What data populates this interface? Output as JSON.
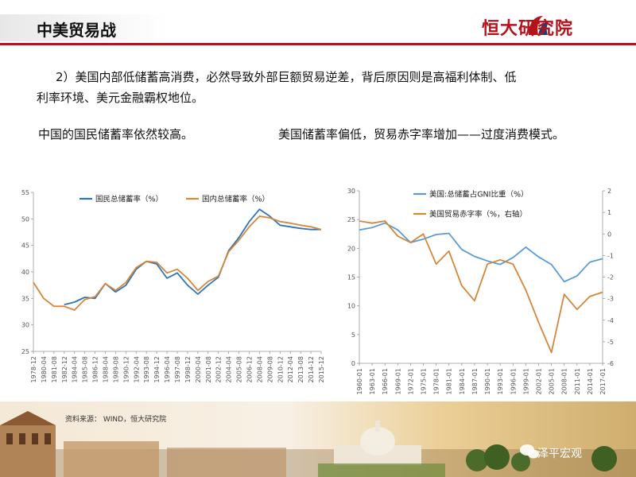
{
  "header": {
    "title": "中美贸易战",
    "logo_text": "恒大研究院"
  },
  "paragraph": {
    "line1": "2）美国内部低储蓄高消费，必然导致外部巨额贸易逆差，背后原因则是高福利体制、低",
    "line2": "利率环境、美元金融霸权地位。"
  },
  "subtitles": {
    "left": "中国的国民储蓄率依然较高。",
    "right": "美国储蓄率偏低，贸易赤字率增加——过度消费模式。"
  },
  "source": "资料来源： WIND，恒大研究院",
  "wechat": "泽平宏观",
  "colors": {
    "blue": "#2e75b6",
    "orange": "#d4873a",
    "brand_red": "#b5121b"
  },
  "icons": {
    "logo": "evergrande-logo-icon",
    "wechat": "wechat-icon"
  },
  "chart_data": [
    {
      "type": "line",
      "x": [
        "1978-12",
        "1980-04",
        "1981-08",
        "1982-12",
        "1984-04",
        "1985-08",
        "1986-12",
        "1988-04",
        "1989-08",
        "1990-12",
        "1992-04",
        "1993-08",
        "1994-12",
        "1996-04",
        "1997-08",
        "1998-12",
        "2000-04",
        "2001-08",
        "2002-12",
        "2004-04",
        "2005-08",
        "2006-12",
        "2008-04",
        "2009-08",
        "2010-12",
        "2012-04",
        "2013-08",
        "2014-12",
        "2015-12"
      ],
      "ylim": [
        25,
        55
      ],
      "yticks": [
        25,
        30,
        35,
        40,
        45,
        50,
        55
      ],
      "legend_position": "top",
      "series": [
        {
          "name": "国民总储蓄率（%）",
          "color": "#2e75b6",
          "values": [
            null,
            null,
            null,
            33.8,
            34.3,
            35.2,
            35.0,
            37.8,
            36.2,
            37.5,
            40.5,
            42.0,
            41.5,
            38.8,
            39.8,
            37.5,
            35.8,
            37.5,
            39.0,
            44.0,
            46.5,
            49.5,
            51.8,
            50.5,
            48.8,
            48.5,
            48.2,
            48.0,
            48.0
          ]
        },
        {
          "name": "国内总储蓄率（%）",
          "color": "#d4873a",
          "values": [
            38.0,
            35.0,
            33.5,
            33.5,
            32.8,
            34.8,
            35.3,
            37.8,
            36.5,
            38.0,
            40.8,
            42.0,
            41.8,
            39.8,
            40.5,
            38.8,
            36.5,
            38.2,
            39.2,
            43.8,
            46.0,
            48.5,
            50.5,
            50.2,
            49.5,
            49.2,
            48.8,
            48.5,
            48.0
          ]
        }
      ]
    },
    {
      "type": "line",
      "x": [
        "1960-01",
        "1963-01",
        "1966-01",
        "1969-01",
        "1972-01",
        "1975-01",
        "1978-01",
        "1981-01",
        "1984-01",
        "1987-01",
        "1990-01",
        "1993-01",
        "1996-01",
        "1999-01",
        "2002-01",
        "2005-01",
        "2008-01",
        "2011-01",
        "2014-01",
        "2017-01"
      ],
      "ylim": [
        0,
        30
      ],
      "yticks": [
        0,
        5,
        10,
        15,
        20,
        25,
        30
      ],
      "y2lim": [
        -6,
        2
      ],
      "y2ticks": [
        2,
        1,
        0,
        -1,
        -2,
        -3,
        -4,
        -5,
        -6
      ],
      "legend_position": "top",
      "series": [
        {
          "name": "美国:总储蓄占GNI比重（%）",
          "color": "#5b9bd5",
          "axis": "left",
          "values": [
            23.2,
            23.6,
            24.4,
            23.2,
            21.0,
            21.6,
            22.4,
            22.6,
            19.8,
            18.6,
            17.8,
            17.2,
            18.4,
            20.2,
            18.5,
            17.2,
            14.2,
            15.2,
            17.6,
            18.2
          ]
        },
        {
          "name": "美国贸易赤字率（%，右轴）",
          "color": "#d4873a",
          "axis": "right",
          "values": [
            0.6,
            0.5,
            0.6,
            -0.1,
            -0.4,
            0.0,
            -1.4,
            -0.8,
            -2.4,
            -3.1,
            -1.4,
            -1.2,
            -1.4,
            -2.6,
            -4.1,
            -5.5,
            -2.8,
            -3.5,
            -2.9,
            -2.7
          ]
        }
      ]
    }
  ]
}
